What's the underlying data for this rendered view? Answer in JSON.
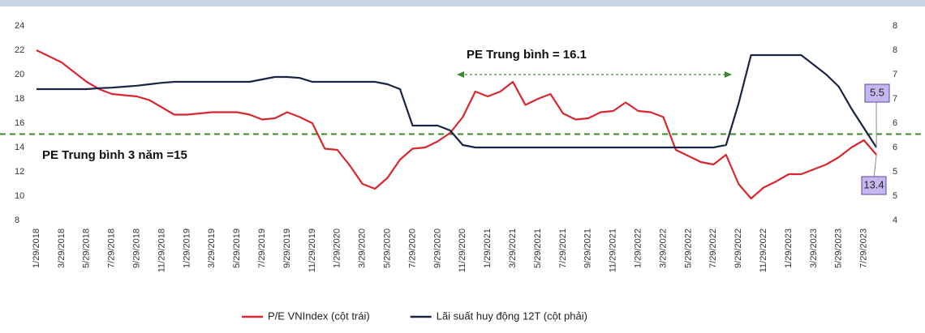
{
  "chart_data": {
    "type": "line",
    "categories": [
      "1/29/2018",
      null,
      "3/29/2018",
      null,
      "5/29/2018",
      null,
      "7/29/2018",
      null,
      "9/29/2018",
      null,
      "11/29/2018",
      null,
      "1/29/2019",
      null,
      "3/29/2019",
      null,
      "5/29/2019",
      null,
      "7/29/2019",
      null,
      "9/29/2019",
      null,
      "11/29/2019",
      null,
      "1/29/2020",
      null,
      "3/29/2020",
      null,
      "5/29/2020",
      null,
      "7/29/2020",
      null,
      "9/29/2020",
      null,
      "11/29/2020",
      null,
      "1/29/2021",
      null,
      "3/29/2021",
      null,
      "5/29/2021",
      null,
      "7/29/2021",
      null,
      "9/29/2021",
      null,
      "11/29/2021",
      null,
      "1/29/2022",
      null,
      "3/29/2022",
      null,
      "5/29/2022",
      null,
      "7/29/2022",
      null,
      "9/29/2022",
      null,
      "11/29/2022",
      null,
      "1/29/2023",
      null,
      "3/29/2023",
      null,
      "5/29/2023",
      null,
      "7/29/2023",
      null
    ],
    "series": [
      {
        "name": "P/E VNIndex (cột trái)",
        "color": "#d7282f",
        "values": [
          22,
          21.5,
          21,
          20.2,
          19.4,
          18.8,
          18.4,
          18.3,
          18.2,
          17.9,
          17.3,
          16.7,
          16.7,
          16.8,
          16.9,
          16.9,
          16.9,
          16.7,
          16.3,
          16.4,
          16.9,
          16.5,
          16,
          13.9,
          13.8,
          12.5,
          11,
          10.6,
          11.5,
          13,
          13.9,
          14,
          14.5,
          15.2,
          16.5,
          18.6,
          18.2,
          18.6,
          19.4,
          17.5,
          18,
          18.4,
          16.8,
          16.3,
          16.4,
          16.9,
          17,
          17.7,
          17,
          16.9,
          16.5,
          13.8,
          13.3,
          12.8,
          12.6,
          13.4,
          11,
          9.8,
          10.7,
          11.2,
          11.8,
          11.8,
          12.2,
          12.6,
          13.2,
          14,
          14.6,
          13.4
        ]
      },
      {
        "name": "Lãi suất huy động 12T (cột phải)",
        "color": "#1a2444",
        "axis": "y2",
        "values": [
          6.7,
          6.7,
          6.7,
          6.7,
          6.7,
          6.72,
          6.73,
          6.75,
          6.77,
          6.8,
          6.83,
          6.85,
          6.85,
          6.85,
          6.85,
          6.85,
          6.85,
          6.85,
          6.9,
          6.95,
          6.95,
          6.93,
          6.85,
          6.85,
          6.85,
          6.85,
          6.85,
          6.85,
          6.8,
          6.7,
          5.95,
          5.95,
          5.95,
          5.85,
          5.55,
          5.5,
          5.5,
          5.5,
          5.5,
          5.5,
          5.5,
          5.5,
          5.5,
          5.5,
          5.5,
          5.5,
          5.5,
          5.5,
          5.5,
          5.5,
          5.5,
          5.5,
          5.5,
          5.5,
          5.5,
          5.55,
          6.4,
          7.4,
          7.4,
          7.4,
          7.4,
          7.4,
          7.2,
          7,
          6.75,
          6.3,
          5.9,
          5.5
        ]
      }
    ],
    "ylim": [
      8,
      24
    ],
    "yticks": [
      8,
      10,
      12,
      14,
      16,
      18,
      20,
      22,
      24
    ],
    "y2lim": [
      4,
      8
    ],
    "y2ticks": [
      4,
      {
        "value": 4.5,
        "label": "5"
      },
      5,
      {
        "value": 5.5,
        "label": "6"
      },
      6,
      {
        "value": 6.5,
        "label": "7"
      },
      7,
      {
        "value": 7.5,
        "label": "8"
      },
      8
    ],
    "reference_line": {
      "value": 15.1,
      "color": "#3a8a2a",
      "label": "PE Trung bình 3 năm =15"
    },
    "annotation": "PE Trung bình = 16.1",
    "grid": false,
    "legend": "bottom"
  }
}
